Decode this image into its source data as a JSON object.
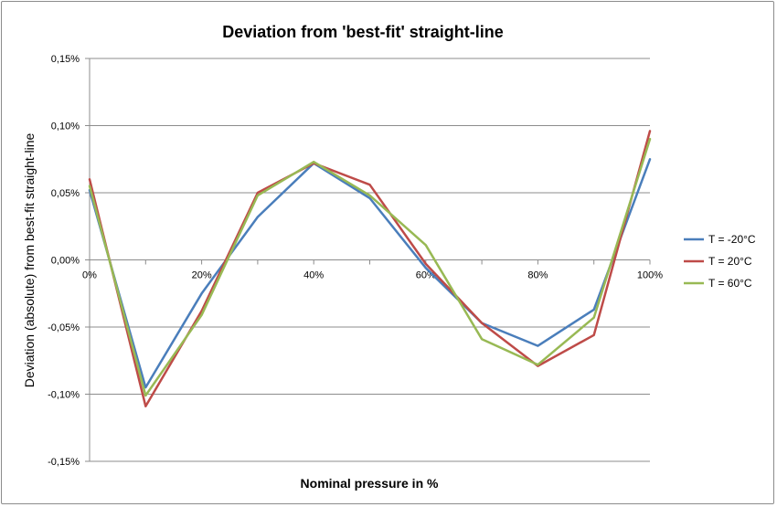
{
  "chart_data": {
    "type": "line",
    "title": "Deviation from 'best-fit' straight-line",
    "xlabel": "Nominal pressure in %",
    "ylabel": "Deviation (absolute) from best-fit straight-line",
    "x": [
      0,
      10,
      20,
      30,
      40,
      50,
      60,
      70,
      80,
      90,
      100
    ],
    "x_tick_values": [
      0,
      20,
      40,
      60,
      80,
      100
    ],
    "x_tick_labels": [
      "0%",
      "20%",
      "40%",
      "60%",
      "80%",
      "100%"
    ],
    "xlim": [
      0,
      100
    ],
    "y_tick_values": [
      0.15,
      0.1,
      0.05,
      0.0,
      -0.05,
      -0.1,
      -0.15
    ],
    "y_tick_labels": [
      "0,15%",
      "0,10%",
      "0,05%",
      "0,00%",
      "-0,05%",
      "-0,10%",
      "-0,15%"
    ],
    "ylim": [
      -0.15,
      0.15
    ],
    "grid": "horizontal",
    "legend_position": "right",
    "series": [
      {
        "name": "T = -20°C",
        "color": "#4A7EBB",
        "values": [
          0.052,
          -0.095,
          -0.025,
          0.032,
          0.072,
          0.046,
          -0.006,
          -0.047,
          -0.064,
          -0.037,
          0.075
        ]
      },
      {
        "name": "T = 20°C",
        "color": "#BE4B48",
        "values": [
          0.06,
          -0.109,
          -0.038,
          0.05,
          0.072,
          0.056,
          -0.003,
          -0.047,
          -0.079,
          -0.056,
          0.096
        ]
      },
      {
        "name": "T = 60°C",
        "color": "#98B954",
        "values": [
          0.055,
          -0.101,
          -0.041,
          0.048,
          0.073,
          0.048,
          0.011,
          -0.059,
          -0.078,
          -0.043,
          0.09
        ]
      }
    ]
  }
}
